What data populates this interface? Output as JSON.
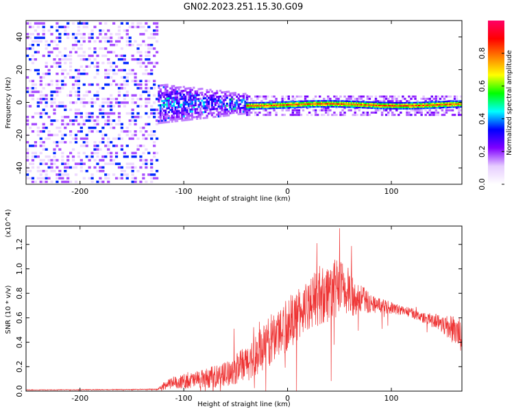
{
  "title": "GN02.2023.251.15.30.G09",
  "chart_data": [
    {
      "type": "heatmap",
      "xlabel": "Height of straight line (km)",
      "ylabel": "Frequency (Hz)",
      "xlim": [
        -252,
        168
      ],
      "ylim": [
        -50,
        50
      ],
      "xticks": [
        -200,
        -100,
        0,
        100
      ],
      "yticks": [
        -40,
        -20,
        0,
        20,
        40
      ],
      "colorbar": {
        "label": "Normalized spectral amplitude",
        "range": [
          0,
          1
        ],
        "ticks": [
          0.0,
          0.2,
          0.4,
          0.6,
          0.8
        ],
        "colormap": [
          "#ffffff",
          "#e6ccff",
          "#8000ff",
          "#0000ff",
          "#00ffff",
          "#00ff00",
          "#ffff00",
          "#ff8000",
          "#ff0000",
          "#ff0066"
        ]
      },
      "regions": [
        {
          "x": [
            -252,
            -125
          ],
          "y": [
            -50,
            50
          ],
          "description": "diffuse noise",
          "amplitude": [
            0.05,
            0.3
          ]
        },
        {
          "x": [
            -125,
            -40
          ],
          "y": [
            -12,
            12
          ],
          "description": "spreading signal",
          "amplitude": [
            0.2,
            0.45
          ]
        },
        {
          "x": [
            -40,
            168
          ],
          "y": [
            -4,
            2
          ],
          "description": "stable carrier line near -1 Hz",
          "amplitude": [
            0.5,
            0.95
          ]
        }
      ]
    },
    {
      "type": "line",
      "xlabel": "Height of straight line (km)",
      "ylabel": "SNR (10 * v/v)",
      "yunit": "(x10^4)",
      "xlim": [
        -252,
        168
      ],
      "ylim": [
        0,
        1.35
      ],
      "xticks": [
        -200,
        -100,
        0,
        100
      ],
      "yticks": [
        0.0,
        0.2,
        0.4,
        0.6,
        0.8,
        1.0,
        1.2
      ],
      "color": "#ee3333",
      "x": [
        -252,
        -200,
        -150,
        -125,
        -120,
        -110,
        -100,
        -80,
        -60,
        -40,
        -30,
        -20,
        -10,
        0,
        10,
        20,
        30,
        40,
        50,
        60,
        70,
        80,
        90,
        100,
        110,
        120,
        130,
        140,
        150,
        160,
        168
      ],
      "y": [
        0.01,
        0.012,
        0.013,
        0.015,
        0.04,
        0.07,
        0.08,
        0.1,
        0.14,
        0.22,
        0.3,
        0.38,
        0.48,
        0.55,
        0.62,
        0.7,
        0.78,
        0.82,
        0.84,
        0.8,
        0.76,
        0.72,
        0.7,
        0.68,
        0.66,
        0.64,
        0.6,
        0.58,
        0.55,
        0.5,
        0.45
      ],
      "noise": [
        0.002,
        0.003,
        0.003,
        0.004,
        0.03,
        0.05,
        0.06,
        0.08,
        0.1,
        0.15,
        0.18,
        0.2,
        0.22,
        0.22,
        0.22,
        0.2,
        0.25,
        0.25,
        0.25,
        0.2,
        0.12,
        0.08,
        0.06,
        0.05,
        0.04,
        0.04,
        0.04,
        0.06,
        0.08,
        0.12,
        0.14
      ]
    }
  ]
}
